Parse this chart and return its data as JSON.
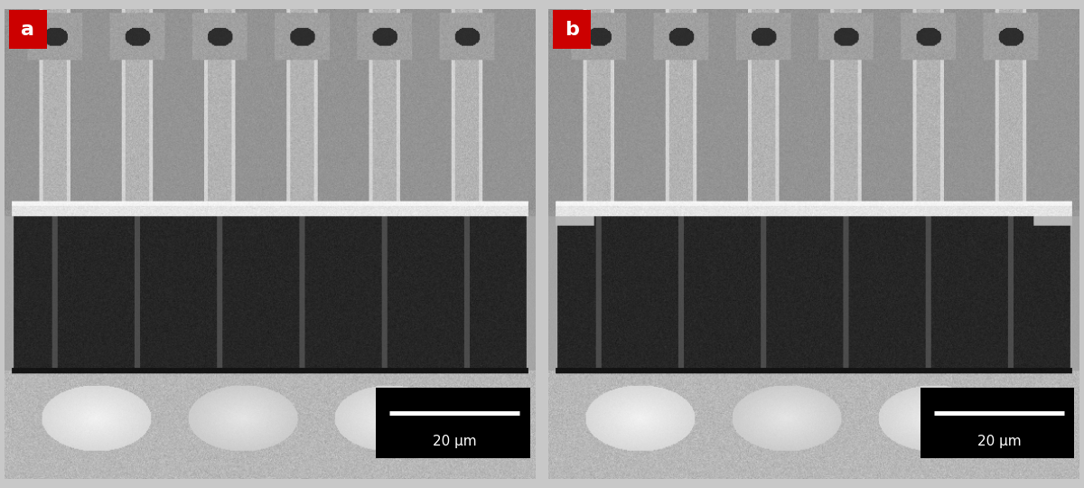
{
  "figure_width": 12.0,
  "figure_height": 5.4,
  "dpi": 100,
  "background_color": "#c8c8c8",
  "label_a": "a",
  "label_b": "b",
  "label_bg_color": "#cc0000",
  "label_text_color": "#ffffff",
  "label_fontsize": 16,
  "label_fontweight": "bold",
  "scalebar_text": "20 μm",
  "scalebar_bg_color": "#000000",
  "scalebar_text_color": "#ffffff",
  "scalebar_fontsize": 11,
  "scalebar_bar_color": "#ffffff"
}
